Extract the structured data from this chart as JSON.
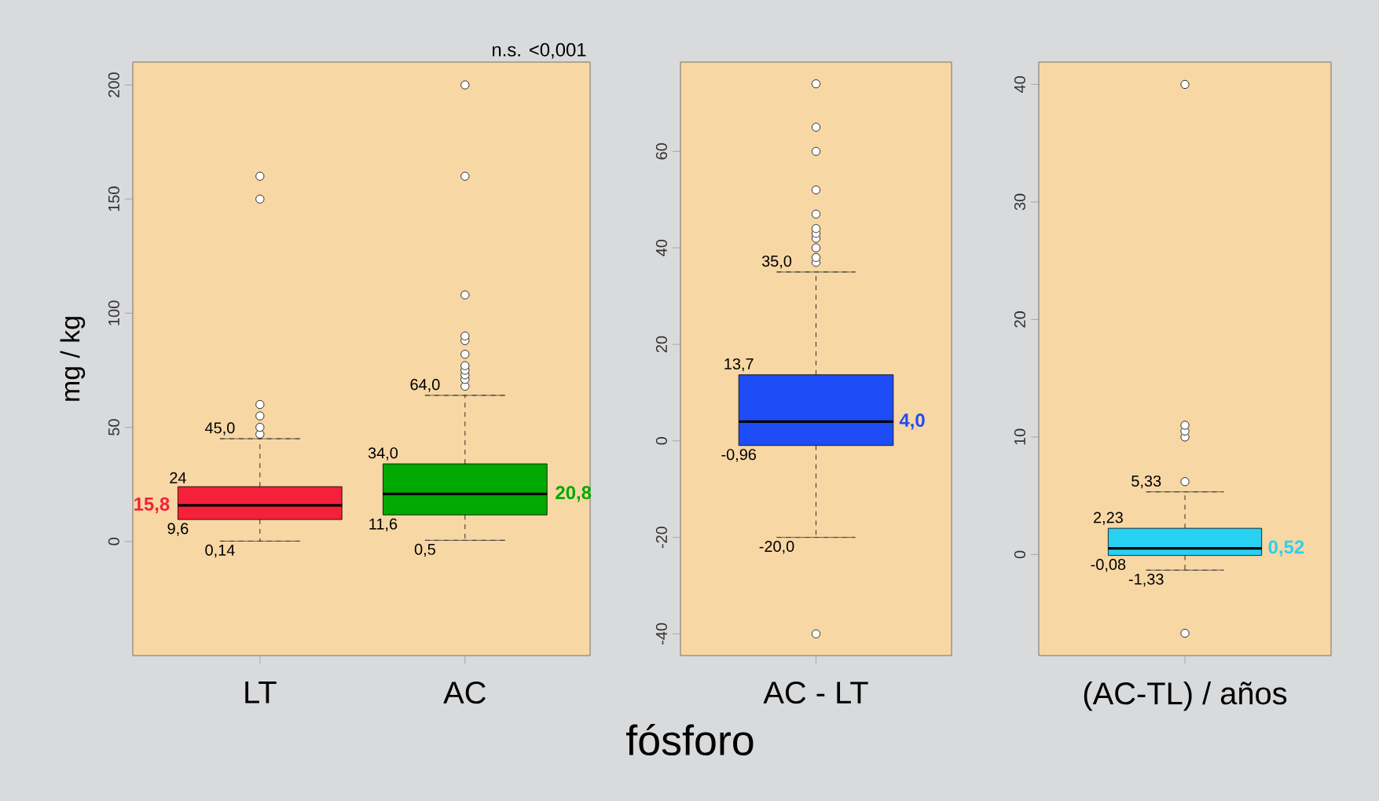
{
  "chart_data": [
    {
      "type": "box",
      "categories": [
        "LT",
        "AC"
      ],
      "ylabel": "mg / kg",
      "ylim": [
        -50,
        210
      ],
      "yticks": [
        0,
        50,
        100,
        150,
        200
      ],
      "colors": [
        "#f5203a",
        "#02a902"
      ],
      "boxes": [
        {
          "low": 0.14,
          "q1": 9.6,
          "median": 15.8,
          "q3": 24,
          "high": 45.0,
          "outliers": [
            47,
            50,
            55,
            60,
            150,
            160
          ]
        },
        {
          "low": 0.5,
          "q1": 11.6,
          "median": 20.8,
          "q3": 34.0,
          "high": 64.0,
          "outliers": [
            68,
            71,
            73,
            75,
            77,
            82,
            88,
            90,
            108,
            160,
            200
          ]
        }
      ],
      "annotations": [
        "n.s. <0,001",
        "9,6",
        "15,8",
        "24",
        "11,6",
        "20,8",
        "34,0",
        {
          "text": "0,14",
          "x": "LT",
          "y": 0.14
        },
        {
          "text": "45,0",
          "x": "LT",
          "y": 45.0
        },
        {
          "text": "0,5",
          "x": "AC",
          "y": 0.5
        },
        {
          "text": "64,0",
          "x": "AC",
          "y": 64.0
        }
      ]
    },
    {
      "type": "box",
      "categories": [
        "AC - LT"
      ],
      "xlabel": "fósforo",
      "ylim": [
        -44.5,
        78.5
      ],
      "yticks": [
        -40,
        -20,
        0,
        20,
        40,
        60
      ],
      "colors": [
        "#1e4cf6"
      ],
      "boxes": [
        {
          "low": -20.0,
          "q1": -0.96,
          "median": 4.0,
          "q3": 13.7,
          "high": 35.0,
          "outliers": [
            -40,
            37,
            38,
            40,
            42,
            43,
            44,
            47,
            52,
            60,
            65,
            74
          ]
        }
      ],
      "annotations": [
        "-0,96",
        "4,0",
        "13,7",
        {
          "text": "-20,0",
          "x": "AC - LT",
          "y": -20.0
        },
        {
          "text": "35,0",
          "x": "AC - LT",
          "y": 35.0
        }
      ]
    },
    {
      "type": "box",
      "categories": [
        "(AC-TL) / años"
      ],
      "ylim": [
        -8.6,
        41.9
      ],
      "yticks": [
        0,
        10,
        20,
        30,
        40
      ],
      "colors": [
        "#28d0f2"
      ],
      "boxes": [
        {
          "low": -1.33,
          "q1": -0.08,
          "median": 0.52,
          "q3": 2.23,
          "high": 5.33,
          "outliers": [
            -6.7,
            6.2,
            10,
            10.5,
            11,
            40
          ]
        }
      ],
      "annotations": [
        "-0,08",
        "0,52",
        "2,23",
        {
          "text": "-1,33",
          "x": "(AC-TL) / años",
          "y": -1.33
        },
        {
          "text": "5,33",
          "x": "(AC-TL) / años",
          "y": 5.33
        }
      ]
    }
  ]
}
